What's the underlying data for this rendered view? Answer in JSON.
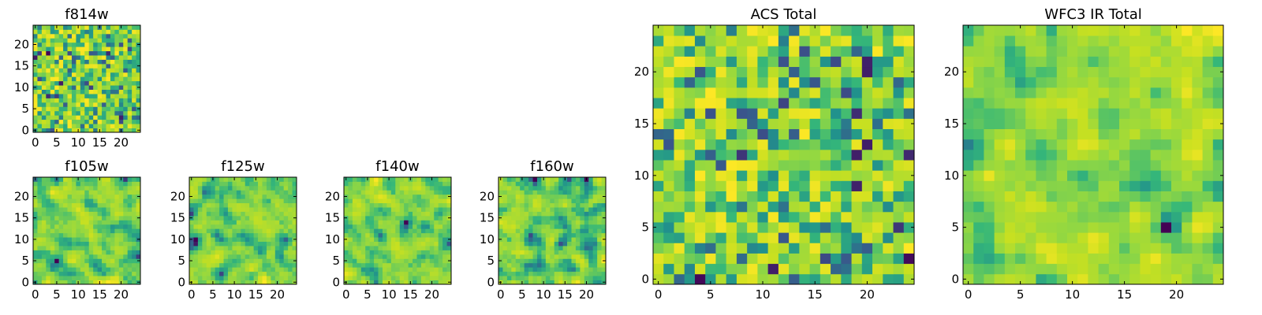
{
  "chart_data": [
    {
      "type": "heatmap",
      "id": "f814w",
      "title": "f814w",
      "size": 25,
      "xticks": [
        0,
        5,
        10,
        15,
        20
      ],
      "yticks": [
        0,
        5,
        10,
        15,
        20
      ],
      "xlim": [
        -0.5,
        24.5
      ],
      "ylim": [
        -0.5,
        24.5
      ],
      "colormap": "viridis",
      "seed": 814,
      "smooth": 0,
      "min_value": 0.0,
      "max_value": 1.0
    },
    {
      "type": "heatmap",
      "id": "f105w",
      "title": "f105w",
      "size": 25,
      "xticks": [
        0,
        5,
        10,
        15,
        20
      ],
      "yticks": [
        0,
        5,
        10,
        15,
        20
      ],
      "xlim": [
        -0.5,
        24.5
      ],
      "ylim": [
        -0.5,
        24.5
      ],
      "colormap": "viridis",
      "seed": 105,
      "smooth": 1,
      "min_value": 0.0,
      "max_value": 1.0
    },
    {
      "type": "heatmap",
      "id": "f125w",
      "title": "f125w",
      "size": 25,
      "xticks": [
        0,
        5,
        10,
        15,
        20
      ],
      "yticks": [
        0,
        5,
        10,
        15,
        20
      ],
      "xlim": [
        -0.5,
        24.5
      ],
      "ylim": [
        -0.5,
        24.5
      ],
      "colormap": "viridis",
      "seed": 125,
      "smooth": 1,
      "min_value": 0.0,
      "max_value": 1.0
    },
    {
      "type": "heatmap",
      "id": "f140w",
      "title": "f140w",
      "size": 25,
      "xticks": [
        0,
        5,
        10,
        15,
        20
      ],
      "yticks": [
        0,
        5,
        10,
        15,
        20
      ],
      "xlim": [
        -0.5,
        24.5
      ],
      "ylim": [
        -0.5,
        24.5
      ],
      "colormap": "viridis",
      "seed": 140,
      "smooth": 1,
      "min_value": 0.0,
      "max_value": 1.0
    },
    {
      "type": "heatmap",
      "id": "f160w",
      "title": "f160w",
      "size": 25,
      "xticks": [
        0,
        5,
        10,
        15,
        20
      ],
      "yticks": [
        0,
        5,
        10,
        15,
        20
      ],
      "xlim": [
        -0.5,
        24.5
      ],
      "ylim": [
        -0.5,
        24.5
      ],
      "colormap": "viridis",
      "seed": 160,
      "smooth": 1,
      "min_value": 0.0,
      "max_value": 1.0
    },
    {
      "type": "heatmap",
      "id": "acs-total",
      "title": "ACS Total",
      "size": 25,
      "xticks": [
        0,
        5,
        10,
        15,
        20
      ],
      "yticks": [
        0,
        5,
        10,
        15,
        20
      ],
      "xlim": [
        -0.5,
        24.5
      ],
      "ylim": [
        -0.5,
        24.5
      ],
      "colormap": "viridis",
      "seed": 3001,
      "smooth": 0,
      "min_value": 0.0,
      "max_value": 1.0
    },
    {
      "type": "heatmap",
      "id": "wfc3-ir-total",
      "title": "WFC3 IR Total",
      "size": 25,
      "xticks": [
        0,
        5,
        10,
        15,
        20
      ],
      "yticks": [
        0,
        5,
        10,
        15,
        20
      ],
      "xlim": [
        -0.5,
        24.5
      ],
      "ylim": [
        -0.5,
        24.5
      ],
      "colormap": "viridis",
      "seed": 4001,
      "smooth": 1,
      "min_value": 0.0,
      "max_value": 1.0
    }
  ]
}
